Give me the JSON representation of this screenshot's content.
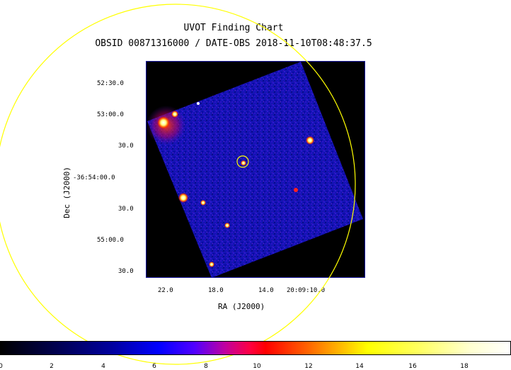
{
  "title": "UVOT Finding Chart",
  "subtitle": "OBSID 00871316000 / DATE-OBS 2018-11-10T08:48:37.5",
  "dec_axis": {
    "label": "Dec (J2000)",
    "ticks": [
      "52:30.0",
      "53:00.0",
      "30.0",
      "-36:54:00.0",
      "30.0",
      "55:00.0",
      "30.0"
    ]
  },
  "ra_axis": {
    "label": "RA (J2000)",
    "ticks": [
      "22.0",
      "18.0",
      "14.0",
      "20:09:10.0"
    ]
  },
  "colorbar": {
    "ticks": [
      "0",
      "2",
      "4",
      "6",
      "8",
      "10",
      "12",
      "14",
      "16",
      "18"
    ]
  },
  "colors": {
    "circle": "#ffff00",
    "field_blue": "#1010b0",
    "frame": "#1a1aa0"
  }
}
